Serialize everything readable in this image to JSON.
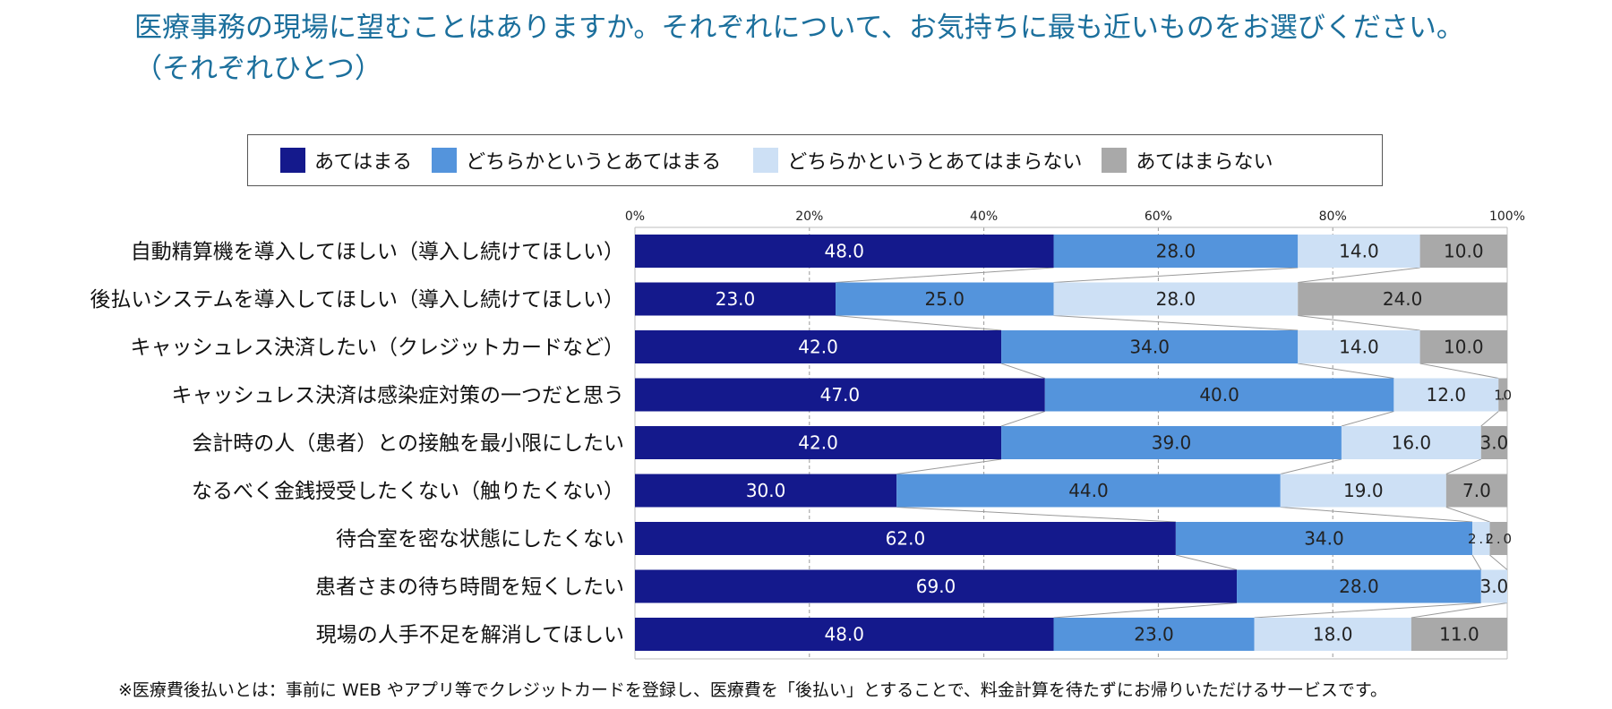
{
  "title": {
    "line1": "医療事務の現場に望むことはありますか。それぞれについて、お気持ちに最も近いものをお選びください。",
    "line2": "（それぞれひとつ）"
  },
  "footnote": "※医療費後払いとは：事前に WEB やアプリ等でクレジットカードを登録し、医療費を「後払い」とすることで、料金計算を待たずにお帰りいただけるサービスです。",
  "chart_data": {
    "type": "bar",
    "orientation": "horizontal",
    "stacked": true,
    "percent_axis": true,
    "xlim": [
      0,
      100
    ],
    "x_ticks": [
      "0%",
      "20%",
      "40%",
      "60%",
      "80%",
      "100%"
    ],
    "grid": true,
    "legend_position": "top",
    "categories": [
      "自動精算機を導入してほしい（導入し続けてほしい）",
      "後払いシステムを導入してほしい（導入し続けてほしい）",
      "キャッシュレス決済したい（クレジットカードなど）",
      "キャッシュレス決済は感染症対策の一つだと思う",
      "会計時の人（患者）との接触を最小限にしたい",
      "なるべく金銭授受したくない（触りたくない）",
      "待合室を密な状態にしたくない",
      "患者さまの待ち時間を短くしたい",
      "現場の人手不足を解消してほしい"
    ],
    "series": [
      {
        "name": "あてはまる",
        "color": "#14198c",
        "label_color": "#ffffff",
        "values": [
          48.0,
          23.0,
          42.0,
          47.0,
          42.0,
          30.0,
          62.0,
          69.0,
          48.0
        ],
        "labels": [
          "48.0",
          "23.0",
          "42.0",
          "47.0",
          "42.0",
          "30.0",
          "62.0",
          "69.0",
          "48.0"
        ]
      },
      {
        "name": "どちらかというとあてはまる",
        "color": "#5494dc",
        "label_color": "#222222",
        "values": [
          28.0,
          25.0,
          34.0,
          40.0,
          39.0,
          44.0,
          34.0,
          28.0,
          23.0
        ],
        "labels": [
          "28.0",
          "25.0",
          "34.0",
          "40.0",
          "39.0",
          "44.0",
          "34.0",
          "28.0",
          "23.0"
        ]
      },
      {
        "name": "どちらかというとあてはまらない",
        "color": "#cde0f5",
        "label_color": "#222222",
        "values": [
          14.0,
          28.0,
          14.0,
          12.0,
          16.0,
          19.0,
          2.0,
          3.0,
          18.0
        ],
        "labels": [
          "14.0",
          "28.0",
          "14.0",
          "12.0",
          "16.0",
          "19.0",
          "2.0",
          "3.0",
          "18.0"
        ]
      },
      {
        "name": "あてはまらない",
        "color": "#a9a9a9",
        "label_color": "#222222",
        "values": [
          10.0,
          24.0,
          10.0,
          1.0,
          3.0,
          7.0,
          2.0,
          0,
          11.0
        ],
        "labels": [
          "10.0",
          "24.0",
          "10.0",
          "1.0",
          "3.0",
          "7.0",
          "2.0",
          "",
          "11.0"
        ]
      }
    ]
  }
}
